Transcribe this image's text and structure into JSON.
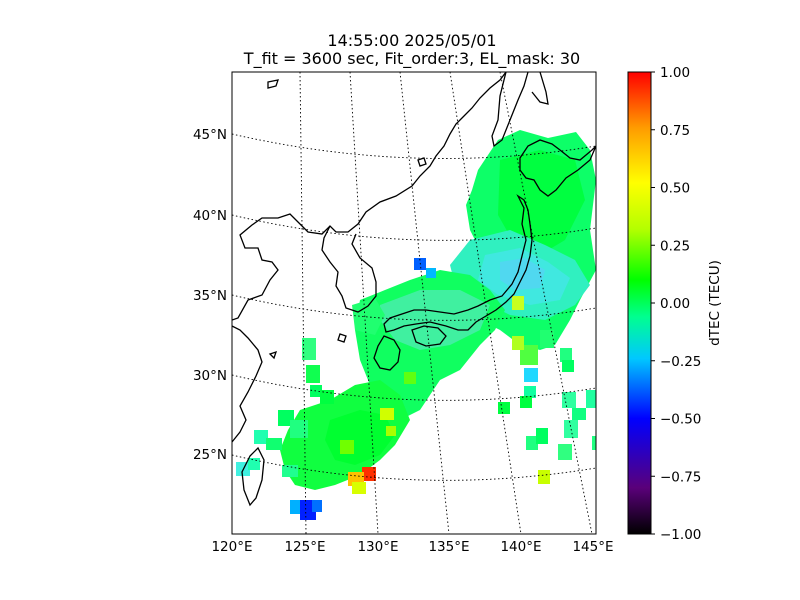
{
  "title": {
    "line1": "14:55:00 2025/05/01",
    "line2": "T_fit = 3600 sec, Fit_order:3, EL_mask: 30"
  },
  "map": {
    "lon_labels": [
      "120°E",
      "125°E",
      "130°E",
      "135°E",
      "140°E",
      "145°E"
    ],
    "lat_labels": [
      "25°N",
      "30°N",
      "35°N",
      "40°N",
      "45°N"
    ],
    "extent": {
      "lon": [
        120,
        145
      ],
      "lat": [
        20,
        49
      ]
    }
  },
  "colorbar": {
    "label": "dTEC (TECU)",
    "tick_labels": [
      "1.00",
      "0.75",
      "0.50",
      "0.25",
      "0.00",
      "−0.25",
      "−0.50",
      "−0.75",
      "−1.00"
    ],
    "range": [
      -1.0,
      1.0
    ],
    "colormap": "nipy_spectral-like",
    "stops": [
      "#000000",
      "#5a007a",
      "#0000ff",
      "#00c8ff",
      "#00ff90",
      "#00ff00",
      "#b4ff00",
      "#ffff00",
      "#ff9b00",
      "#ff0000"
    ]
  },
  "chart_data": {
    "type": "heatmap",
    "title": "14:55:00 2025/05/01 / T_fit = 3600 sec, Fit_order:3, EL_mask: 30",
    "colorbar_label": "dTEC (TECU)",
    "clim": [
      -1.0,
      1.0
    ],
    "xlabel": "",
    "ylabel": "",
    "notes_values": [
      {
        "lon": 125.2,
        "lat": 21.3,
        "value": -0.6
      },
      {
        "lon": 129.5,
        "lat": 23.5,
        "value": 0.7
      },
      {
        "lon": 130.3,
        "lat": 23.8,
        "value": 0.95
      },
      {
        "lon": 140.7,
        "lat": 23.6,
        "value": 0.5
      },
      {
        "lon": 133.0,
        "lat": 37.0,
        "value": -0.45
      },
      {
        "lon": 140.5,
        "lat": 30.0,
        "value": -0.3
      },
      {
        "lon": 140.0,
        "lat": 37.0,
        "value": -0.15
      },
      {
        "lon": 137.0,
        "lat": 40.0,
        "value": 0.1
      },
      {
        "lon": 132.0,
        "lat": 33.0,
        "value": 0.15
      }
    ]
  }
}
